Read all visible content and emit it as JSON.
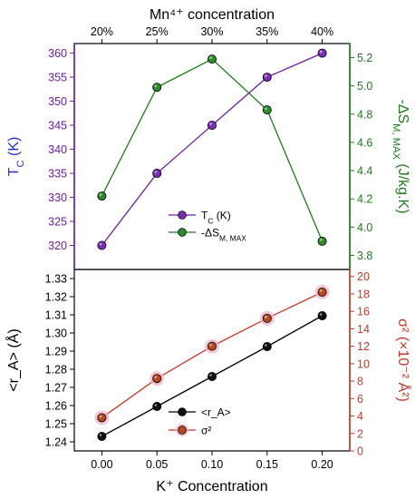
{
  "colors": {
    "tc": "#6a1fa0",
    "tc_marker": "#7a2fb5",
    "ds": "#1f7a1f",
    "ds_marker": "#2f8a2a",
    "ra": "#000000",
    "ra_marker": "#111111",
    "sigma": "#c0392b",
    "sigma_marker": "#b34a22",
    "sigma_halo": "#f4b3c6",
    "tc_axis": "#6a1fa0",
    "tc_title": "#2233cc",
    "ds_axis": "#1f7a1f",
    "sigma_axis": "#c0392b",
    "frame": "#000000"
  },
  "chart_data": [
    {
      "type": "line",
      "top_xlabel": "Mn⁴⁺ concentration",
      "top_categories": [
        "20%",
        "25%",
        "30%",
        "35%",
        "40%"
      ],
      "ylabel_left": "T_C (K)",
      "ylabel_right": "-ΔS_M, MAX (J/kg.K)",
      "ylim_left": [
        315,
        362
      ],
      "ylim_right": [
        3.7,
        5.3
      ],
      "yticks_left": [
        320,
        325,
        330,
        335,
        340,
        345,
        350,
        355,
        360
      ],
      "yticks_right": [
        3.8,
        4.0,
        4.2,
        4.4,
        4.6,
        4.8,
        5.0,
        5.2
      ],
      "x": [
        0.0,
        0.05,
        0.1,
        0.15,
        0.2
      ],
      "series": [
        {
          "name": "T_C (K)",
          "axis": "left",
          "values": [
            320,
            335,
            345,
            355,
            360
          ]
        },
        {
          "name": "-ΔS_M, MAX",
          "axis": "right",
          "values": [
            4.22,
            4.99,
            5.19,
            4.83,
            3.9
          ]
        }
      ],
      "legend": [
        "T_C (K)",
        "-ΔS_M, MAX"
      ],
      "legend_position": "bottom-center"
    },
    {
      "type": "line",
      "xlabel": "K⁺ Concentration",
      "xlim": [
        -0.025,
        0.225
      ],
      "xticks": [
        "0.00",
        "0.05",
        "0.10",
        "0.15",
        "0.20"
      ],
      "ylabel_left": "<r_A> (Å)",
      "ylabel_right": "σ² (×10⁻² Å²)",
      "ylim_left": [
        1.235,
        1.335
      ],
      "ylim_right": [
        0,
        20.8
      ],
      "yticks_left": [
        "1.24",
        "1.25",
        "1.26",
        "1.27",
        "1.28",
        "1.29",
        "1.30",
        "1.31",
        "1.32",
        "1.33"
      ],
      "yticks_right": [
        "0",
        "2",
        "4",
        "6",
        "8",
        "10",
        "12",
        "14",
        "16",
        "18",
        "20"
      ],
      "x": [
        0.0,
        0.05,
        0.1,
        0.15,
        0.2
      ],
      "series": [
        {
          "name": "<r_A>",
          "axis": "left",
          "values": [
            1.243,
            1.2595,
            1.276,
            1.2925,
            1.3095
          ]
        },
        {
          "name": "σ²",
          "axis": "right",
          "values": [
            3.8,
            8.3,
            12.0,
            15.2,
            18.2
          ]
        }
      ],
      "legend": [
        "<r_A>",
        "σ²"
      ],
      "legend_position": "bottom-center"
    }
  ]
}
